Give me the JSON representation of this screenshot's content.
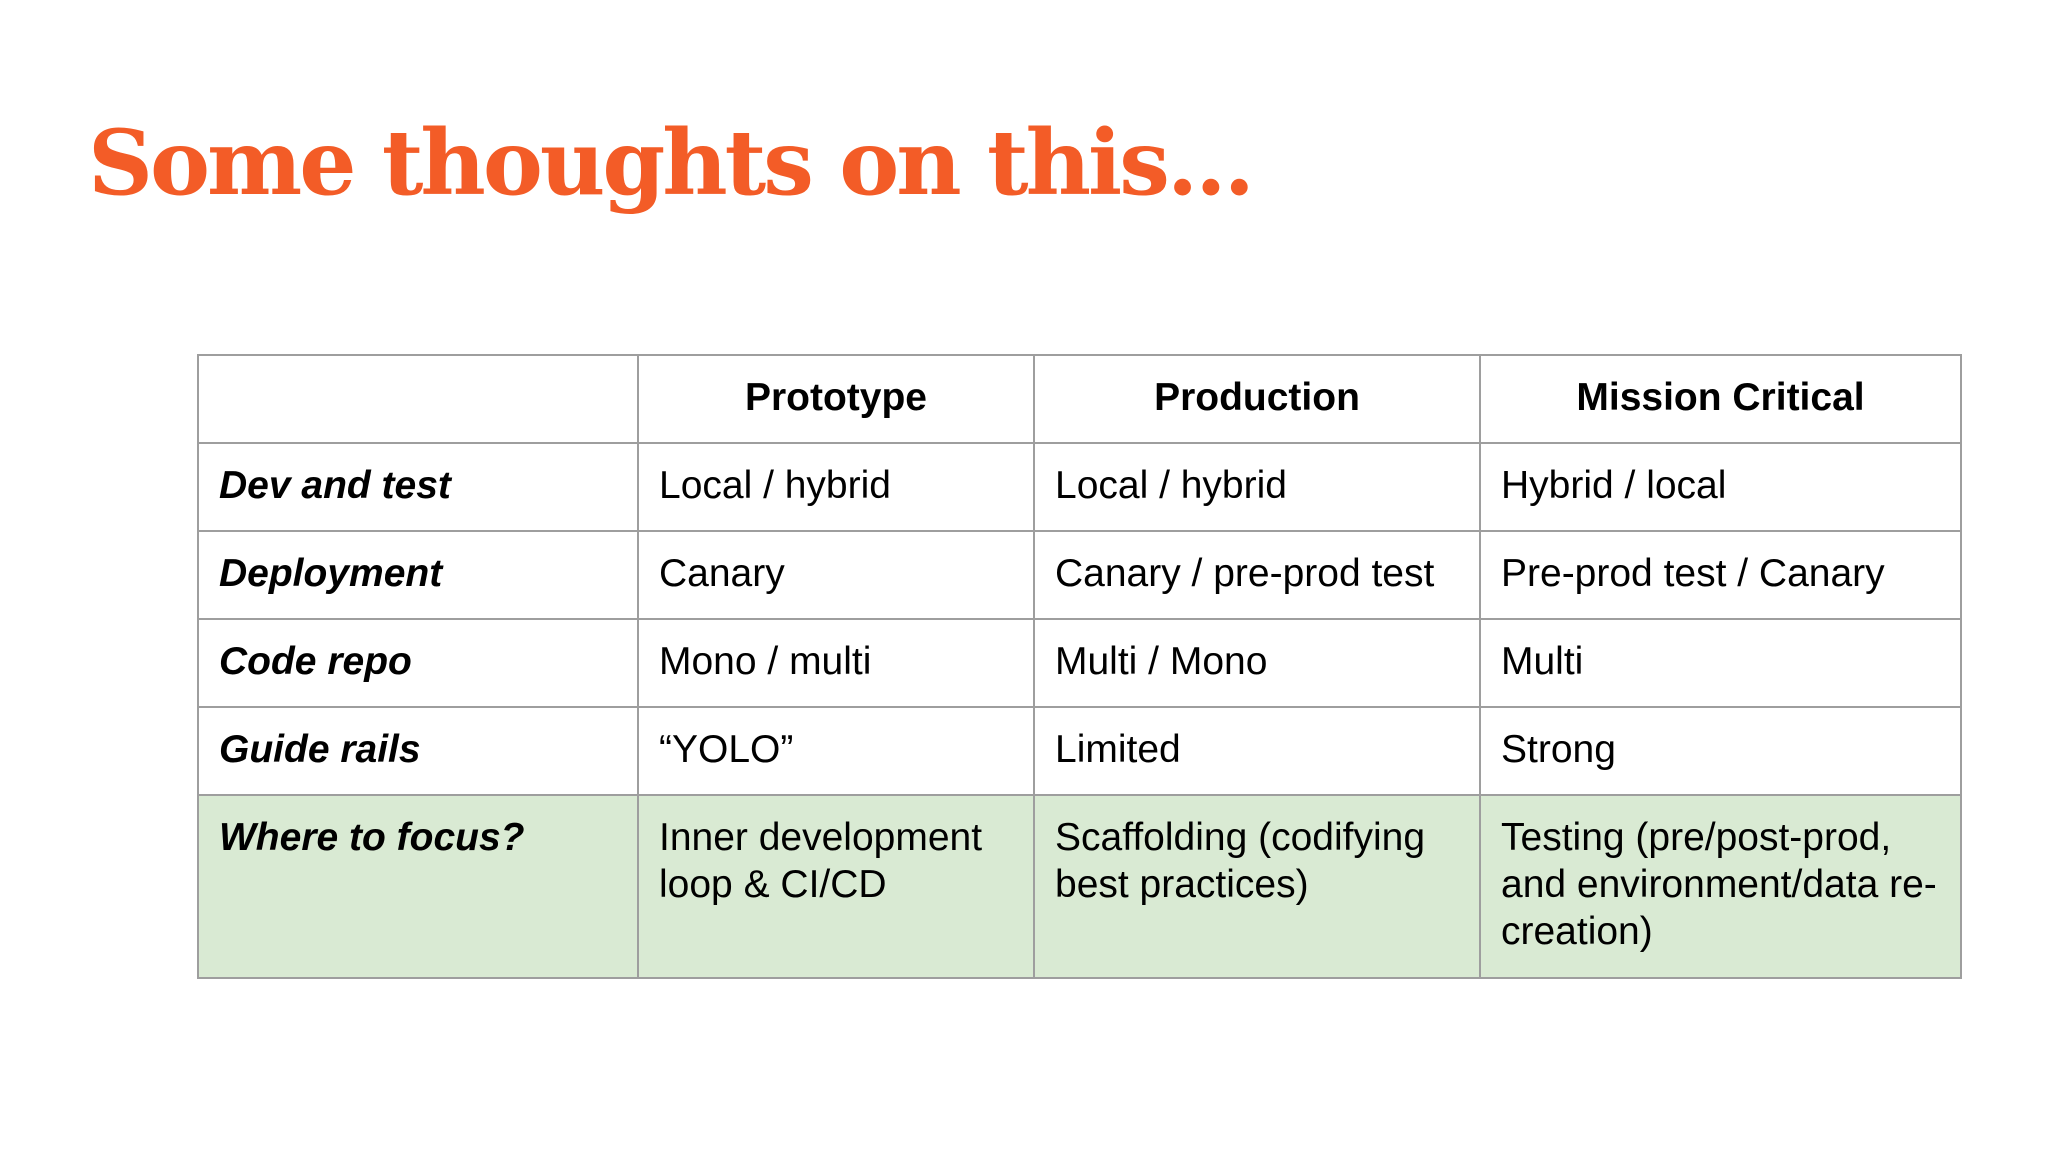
{
  "slide": {
    "title": "Some thoughts on this...",
    "title_color": "#f35c27",
    "highlight_row_color": "#d9ead3"
  },
  "table": {
    "corner": "",
    "columns": [
      "Prototype",
      "Production",
      "Mission Critical"
    ],
    "rows": [
      {
        "label": "Dev and test",
        "cells": [
          "Local / hybrid",
          "Local / hybrid",
          "Hybrid / local"
        ]
      },
      {
        "label": "Deployment",
        "cells": [
          "Canary",
          "Canary / pre-prod test",
          "Pre-prod test / Canary"
        ]
      },
      {
        "label": "Code repo",
        "cells": [
          "Mono / multi",
          "Multi / Mono",
          "Multi"
        ]
      },
      {
        "label": "Guide rails",
        "cells": [
          "“YOLO”",
          "Limited",
          "Strong"
        ]
      },
      {
        "label": "Where to focus?",
        "cells": [
          "Inner development loop & CI/CD",
          "Scaffolding (codifying best practices)",
          "Testing (pre/post-prod, and environment/data re-creation)"
        ]
      }
    ]
  }
}
